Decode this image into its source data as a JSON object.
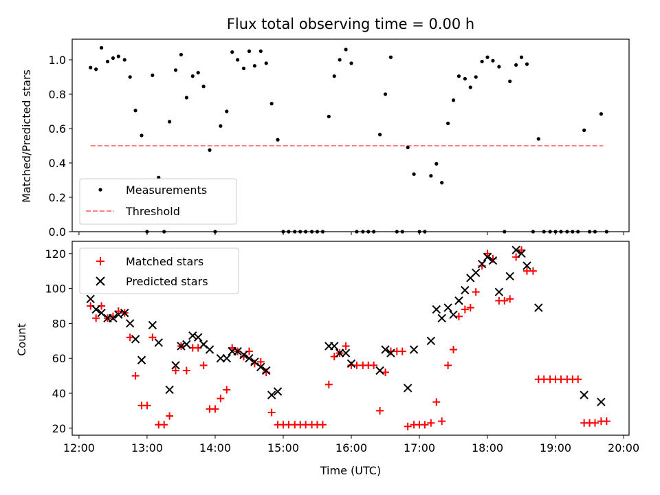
{
  "chart_data": [
    {
      "type": "scatter",
      "title": "Flux total observing time = 0.00 h",
      "xlabel": "",
      "ylabel": "Matched/Predicted stars",
      "xlim": [
        11.9,
        20.08
      ],
      "ylim": [
        0.0,
        1.12
      ],
      "yticks": [
        "0.0",
        "0.2",
        "0.4",
        "0.6",
        "0.8",
        "1.0"
      ],
      "yticks_values": [
        0.0,
        0.2,
        0.4,
        0.6,
        0.8,
        1.0
      ],
      "legend": {
        "location": "lower-left",
        "entries": [
          "Measurements",
          "Threshold"
        ]
      },
      "threshold": {
        "name": "Threshold",
        "value": 0.5,
        "x_range": [
          12.17,
          19.7
        ],
        "color": "#ff8080"
      },
      "series": [
        {
          "name": "Measurements",
          "color": "#000000",
          "points": [
            [
              12.17,
              0.955
            ],
            [
              12.25,
              0.945
            ],
            [
              12.33,
              1.07
            ],
            [
              12.42,
              0.99
            ],
            [
              12.5,
              1.01
            ],
            [
              12.58,
              1.02
            ],
            [
              12.67,
              1.0
            ],
            [
              12.75,
              0.9
            ],
            [
              12.83,
              0.705
            ],
            [
              12.92,
              0.56
            ],
            [
              13.0,
              0.0
            ],
            [
              13.08,
              0.91
            ],
            [
              13.17,
              0.315
            ],
            [
              13.25,
              0.0
            ],
            [
              13.33,
              0.64
            ],
            [
              13.42,
              0.94
            ],
            [
              13.5,
              1.03
            ],
            [
              13.58,
              0.78
            ],
            [
              13.67,
              0.905
            ],
            [
              13.75,
              0.925
            ],
            [
              13.83,
              0.845
            ],
            [
              13.92,
              0.475
            ],
            [
              14.0,
              0.0
            ],
            [
              14.08,
              0.615
            ],
            [
              14.17,
              0.7
            ],
            [
              14.25,
              1.045
            ],
            [
              14.33,
              1.0
            ],
            [
              14.42,
              0.95
            ],
            [
              14.5,
              1.05
            ],
            [
              14.58,
              0.965
            ],
            [
              14.67,
              1.05
            ],
            [
              14.75,
              0.98
            ],
            [
              14.83,
              0.745
            ],
            [
              14.92,
              0.535
            ],
            [
              15.0,
              0.0
            ],
            [
              15.08,
              0.0
            ],
            [
              15.17,
              0.0
            ],
            [
              15.25,
              0.0
            ],
            [
              15.33,
              0.0
            ],
            [
              15.42,
              0.0
            ],
            [
              15.5,
              0.0
            ],
            [
              15.58,
              0.0
            ],
            [
              15.67,
              0.67
            ],
            [
              15.75,
              0.905
            ],
            [
              15.83,
              1.0
            ],
            [
              15.92,
              1.06
            ],
            [
              16.0,
              0.98
            ],
            [
              16.08,
              0.0
            ],
            [
              16.17,
              0.0
            ],
            [
              16.25,
              0.0
            ],
            [
              16.33,
              0.0
            ],
            [
              16.42,
              0.565
            ],
            [
              16.5,
              0.8
            ],
            [
              16.58,
              1.015
            ],
            [
              16.67,
              0.0
            ],
            [
              16.75,
              0.0
            ],
            [
              16.83,
              0.49
            ],
            [
              16.92,
              0.335
            ],
            [
              17.0,
              0.0
            ],
            [
              17.08,
              0.0
            ],
            [
              17.17,
              0.325
            ],
            [
              17.25,
              0.395
            ],
            [
              17.33,
              0.285
            ],
            [
              17.42,
              0.63
            ],
            [
              17.5,
              0.765
            ],
            [
              17.58,
              0.905
            ],
            [
              17.67,
              0.89
            ],
            [
              17.75,
              0.84
            ],
            [
              17.83,
              0.9
            ],
            [
              17.92,
              0.99
            ],
            [
              18.0,
              1.015
            ],
            [
              18.08,
              0.995
            ],
            [
              18.17,
              0.96
            ],
            [
              18.25,
              0.0
            ],
            [
              18.33,
              0.875
            ],
            [
              18.42,
              0.97
            ],
            [
              18.5,
              1.015
            ],
            [
              18.58,
              0.975
            ],
            [
              18.67,
              0.0
            ],
            [
              18.75,
              0.54
            ],
            [
              18.83,
              0.0
            ],
            [
              18.92,
              0.0
            ],
            [
              19.0,
              0.0
            ],
            [
              19.08,
              0.0
            ],
            [
              19.17,
              0.0
            ],
            [
              19.25,
              0.0
            ],
            [
              19.33,
              0.0
            ],
            [
              19.42,
              0.59
            ],
            [
              19.5,
              0.0
            ],
            [
              19.58,
              0.0
            ],
            [
              19.67,
              0.685
            ],
            [
              19.75,
              0.0
            ]
          ]
        }
      ]
    },
    {
      "type": "scatter",
      "title": "",
      "xlabel": "Time (UTC)",
      "ylabel": "Count",
      "xlim": [
        11.9,
        20.08
      ],
      "ylim": [
        16,
        127
      ],
      "xticks": [
        "12:00",
        "13:00",
        "14:00",
        "15:00",
        "16:00",
        "17:00",
        "18:00",
        "19:00",
        "20:00"
      ],
      "xticks_values": [
        12,
        13,
        14,
        15,
        16,
        17,
        18,
        19,
        20
      ],
      "yticks": [
        "20",
        "40",
        "60",
        "80",
        "100",
        "120"
      ],
      "yticks_values": [
        20,
        40,
        60,
        80,
        100,
        120
      ],
      "legend": {
        "location": "upper-left",
        "entries": [
          "Matched stars",
          "Predicted stars"
        ]
      },
      "series": [
        {
          "name": "Matched stars",
          "marker": "plus",
          "color": "#ff0000",
          "points": [
            [
              12.17,
              90
            ],
            [
              12.25,
              83
            ],
            [
              12.33,
              90
            ],
            [
              12.42,
              83
            ],
            [
              12.5,
              84
            ],
            [
              12.58,
              87
            ],
            [
              12.67,
              86
            ],
            [
              12.75,
              72
            ],
            [
              12.83,
              50
            ],
            [
              12.92,
              33
            ],
            [
              13.0,
              33
            ],
            [
              13.08,
              72
            ],
            [
              13.17,
              22
            ],
            [
              13.25,
              22
            ],
            [
              13.33,
              27
            ],
            [
              13.42,
              53
            ],
            [
              13.5,
              67
            ],
            [
              13.58,
              53
            ],
            [
              13.67,
              66
            ],
            [
              13.75,
              66
            ],
            [
              13.83,
              56
            ],
            [
              13.92,
              31
            ],
            [
              14.0,
              31
            ],
            [
              14.08,
              37
            ],
            [
              14.17,
              42
            ],
            [
              14.25,
              66
            ],
            [
              14.33,
              64
            ],
            [
              14.42,
              61
            ],
            [
              14.5,
              64
            ],
            [
              14.58,
              57
            ],
            [
              14.67,
              58
            ],
            [
              14.75,
              52
            ],
            [
              14.83,
              29
            ],
            [
              14.92,
              22
            ],
            [
              15.0,
              22
            ],
            [
              15.08,
              22
            ],
            [
              15.17,
              22
            ],
            [
              15.25,
              22
            ],
            [
              15.33,
              22
            ],
            [
              15.42,
              22
            ],
            [
              15.5,
              22
            ],
            [
              15.58,
              22
            ],
            [
              15.67,
              45
            ],
            [
              15.75,
              61
            ],
            [
              15.83,
              63
            ],
            [
              15.92,
              67
            ],
            [
              16.0,
              56
            ],
            [
              16.08,
              56
            ],
            [
              16.17,
              56
            ],
            [
              16.25,
              56
            ],
            [
              16.33,
              56
            ],
            [
              16.42,
              30
            ],
            [
              16.5,
              52
            ],
            [
              16.58,
              64
            ],
            [
              16.67,
              64
            ],
            [
              16.75,
              64
            ],
            [
              16.83,
              21
            ],
            [
              16.92,
              22
            ],
            [
              17.0,
              22
            ],
            [
              17.08,
              22
            ],
            [
              17.17,
              23
            ],
            [
              17.25,
              35
            ],
            [
              17.33,
              24
            ],
            [
              17.42,
              56
            ],
            [
              17.5,
              65
            ],
            [
              17.58,
              84
            ],
            [
              17.67,
              88
            ],
            [
              17.75,
              89
            ],
            [
              17.83,
              98
            ],
            [
              17.92,
              113
            ],
            [
              18.0,
              120
            ],
            [
              18.08,
              117
            ],
            [
              18.17,
              93
            ],
            [
              18.25,
              93
            ],
            [
              18.33,
              94
            ],
            [
              18.42,
              118
            ],
            [
              18.5,
              122
            ],
            [
              18.58,
              110
            ],
            [
              18.67,
              110
            ],
            [
              18.75,
              48
            ],
            [
              18.83,
              48
            ],
            [
              18.92,
              48
            ],
            [
              19.0,
              48
            ],
            [
              19.08,
              48
            ],
            [
              19.17,
              48
            ],
            [
              19.25,
              48
            ],
            [
              19.33,
              48
            ],
            [
              19.42,
              23
            ],
            [
              19.5,
              23
            ],
            [
              19.58,
              23
            ],
            [
              19.67,
              24
            ],
            [
              19.75,
              24
            ]
          ]
        },
        {
          "name": "Predicted stars",
          "marker": "x",
          "color": "#000000",
          "points": [
            [
              12.17,
              94
            ],
            [
              12.25,
              88
            ],
            [
              12.33,
              86
            ],
            [
              12.42,
              83
            ],
            [
              12.5,
              83
            ],
            [
              12.58,
              85
            ],
            [
              12.67,
              86
            ],
            [
              12.75,
              80
            ],
            [
              12.83,
              71
            ],
            [
              12.92,
              59
            ],
            [
              13.08,
              79
            ],
            [
              13.17,
              69
            ],
            [
              13.33,
              42
            ],
            [
              13.42,
              56
            ],
            [
              13.5,
              67
            ],
            [
              13.58,
              68
            ],
            [
              13.67,
              73
            ],
            [
              13.75,
              72
            ],
            [
              13.83,
              68
            ],
            [
              13.92,
              65
            ],
            [
              14.08,
              60
            ],
            [
              14.17,
              60
            ],
            [
              14.25,
              64
            ],
            [
              14.33,
              64
            ],
            [
              14.42,
              62
            ],
            [
              14.5,
              60
            ],
            [
              14.58,
              58
            ],
            [
              14.67,
              55
            ],
            [
              14.75,
              53
            ],
            [
              14.83,
              39
            ],
            [
              14.92,
              41
            ],
            [
              15.67,
              67
            ],
            [
              15.75,
              67
            ],
            [
              15.83,
              63
            ],
            [
              15.92,
              63
            ],
            [
              16.0,
              57
            ],
            [
              16.42,
              53
            ],
            [
              16.5,
              65
            ],
            [
              16.58,
              63
            ],
            [
              16.83,
              43
            ],
            [
              16.92,
              65
            ],
            [
              17.17,
              70
            ],
            [
              17.25,
              88
            ],
            [
              17.33,
              83
            ],
            [
              17.42,
              89
            ],
            [
              17.5,
              85
            ],
            [
              17.58,
              93
            ],
            [
              17.67,
              99
            ],
            [
              17.75,
              106
            ],
            [
              17.83,
              109
            ],
            [
              17.92,
              114
            ],
            [
              18.0,
              118
            ],
            [
              18.08,
              116
            ],
            [
              18.17,
              98
            ],
            [
              18.33,
              107
            ],
            [
              18.42,
              122
            ],
            [
              18.5,
              120
            ],
            [
              18.58,
              113
            ],
            [
              18.75,
              89
            ],
            [
              19.42,
              39
            ],
            [
              19.67,
              35
            ]
          ]
        }
      ]
    }
  ]
}
